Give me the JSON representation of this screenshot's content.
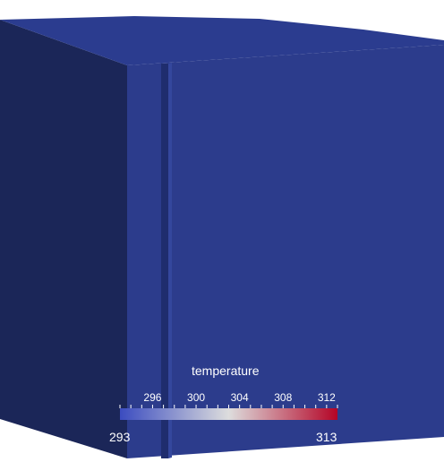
{
  "colorbar": {
    "title": "temperature",
    "range": [
      293,
      313
    ],
    "min_label": "293",
    "max_label": "313",
    "ticks": [
      {
        "value": 296,
        "label": "296"
      },
      {
        "value": 300,
        "label": "300"
      },
      {
        "value": 304,
        "label": "304"
      },
      {
        "value": 308,
        "label": "308"
      },
      {
        "value": 312,
        "label": "312"
      }
    ],
    "colormap": [
      "#3b4cc0",
      "#dddddd",
      "#b40426"
    ]
  },
  "scene": {
    "background_color": "#ffffff",
    "face_front_color": "#2c3c8c",
    "face_left_color": "#1b2658",
    "face_top_color": "#2b3c8f",
    "groove_color": "#253582",
    "field_value_displayed": 293
  }
}
